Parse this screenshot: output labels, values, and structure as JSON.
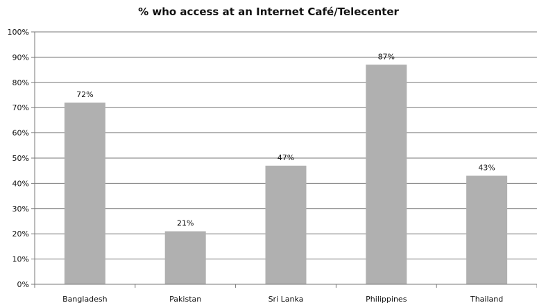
{
  "chart_data": {
    "type": "bar",
    "title": "% who access at an Internet Café/Telecenter",
    "categories": [
      "Bangladesh",
      "Pakistan",
      "Sri Lanka",
      "Philippines",
      "Thailand"
    ],
    "values": [
      72,
      21,
      47,
      87,
      43
    ],
    "data_labels": [
      "72%",
      "21%",
      "47%",
      "87%",
      "43%"
    ],
    "ylim": [
      0,
      100
    ],
    "yticks": [
      0,
      10,
      20,
      30,
      40,
      50,
      60,
      70,
      80,
      90,
      100
    ],
    "ytick_labels": [
      "0%",
      "10%",
      "20%",
      "30%",
      "40%",
      "50%",
      "60%",
      "70%",
      "80%",
      "90%",
      "100%"
    ],
    "grid": true,
    "legend": "none",
    "bar_color": "#b0b0b0",
    "grid_color": "#777777"
  }
}
